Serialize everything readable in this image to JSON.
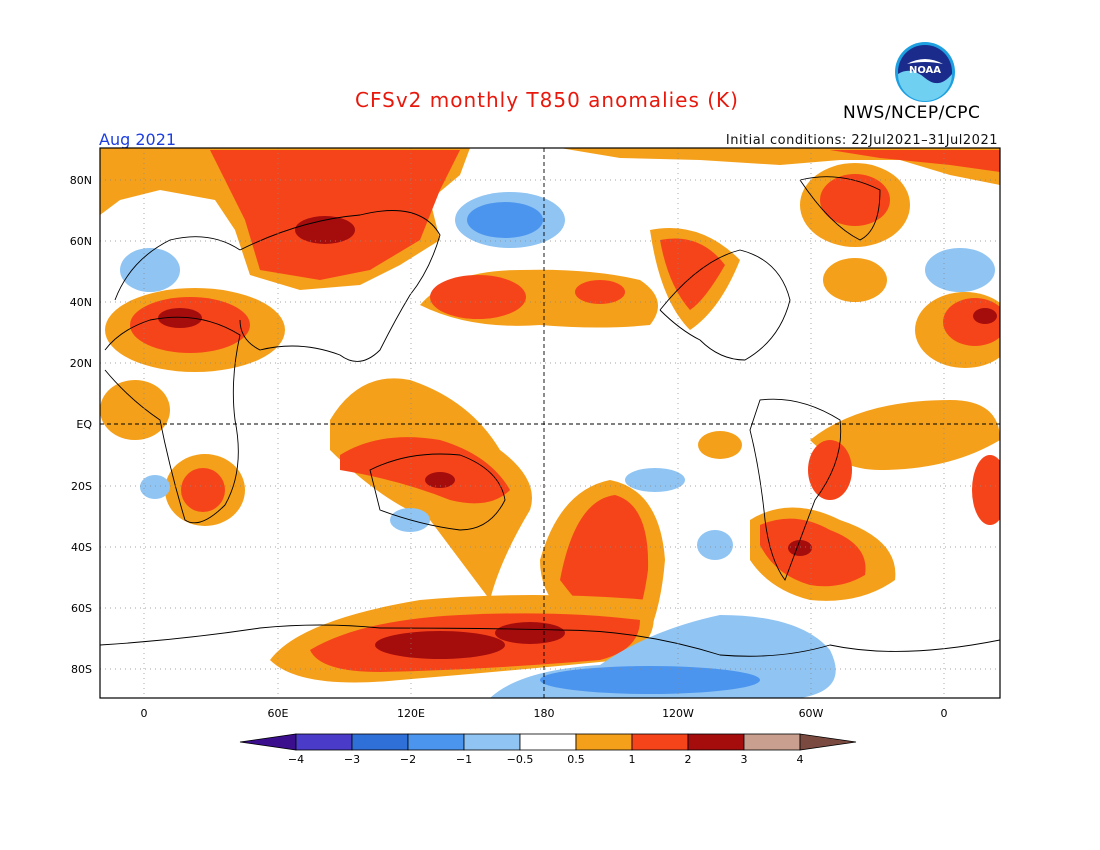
{
  "header": {
    "title": "CFSv2 monthly T850 anomalies (K)",
    "valid_month": "Aug 2021",
    "initial_conditions": "Initial conditions: 22Jul2021–31Jul2021",
    "agency": "NWS/NCEP/CPC",
    "logo_text": "NOAA"
  },
  "map": {
    "lat_labels": [
      "80N",
      "60N",
      "40N",
      "20N",
      "EQ",
      "20S",
      "40S",
      "60S",
      "80S"
    ],
    "lon_labels": [
      "0",
      "60E",
      "120E",
      "180",
      "120W",
      "60W",
      "0"
    ],
    "grid_lines": "dotted",
    "reference_lines": [
      "Equator",
      "180"
    ]
  },
  "colorbar": {
    "labels": [
      "−4",
      "−3",
      "−2",
      "−1",
      "−0.5",
      "0.5",
      "1",
      "2",
      "3",
      "4"
    ],
    "colors": [
      "#3a0e8c",
      "#4a3cc8",
      "#2f6fd8",
      "#4c95ee",
      "#8fc4f3",
      "#ffffff",
      "#f5a01a",
      "#f6441a",
      "#a50d0d",
      "#c9a090",
      "#7a4a40"
    ]
  },
  "anomaly_colors": {
    "warm_0_5": "#f5a01a",
    "warm_1": "#f6441a",
    "warm_2": "#a50d0d",
    "cool_0_5": "#8fc4f3",
    "cool_1": "#4c95ee"
  }
}
